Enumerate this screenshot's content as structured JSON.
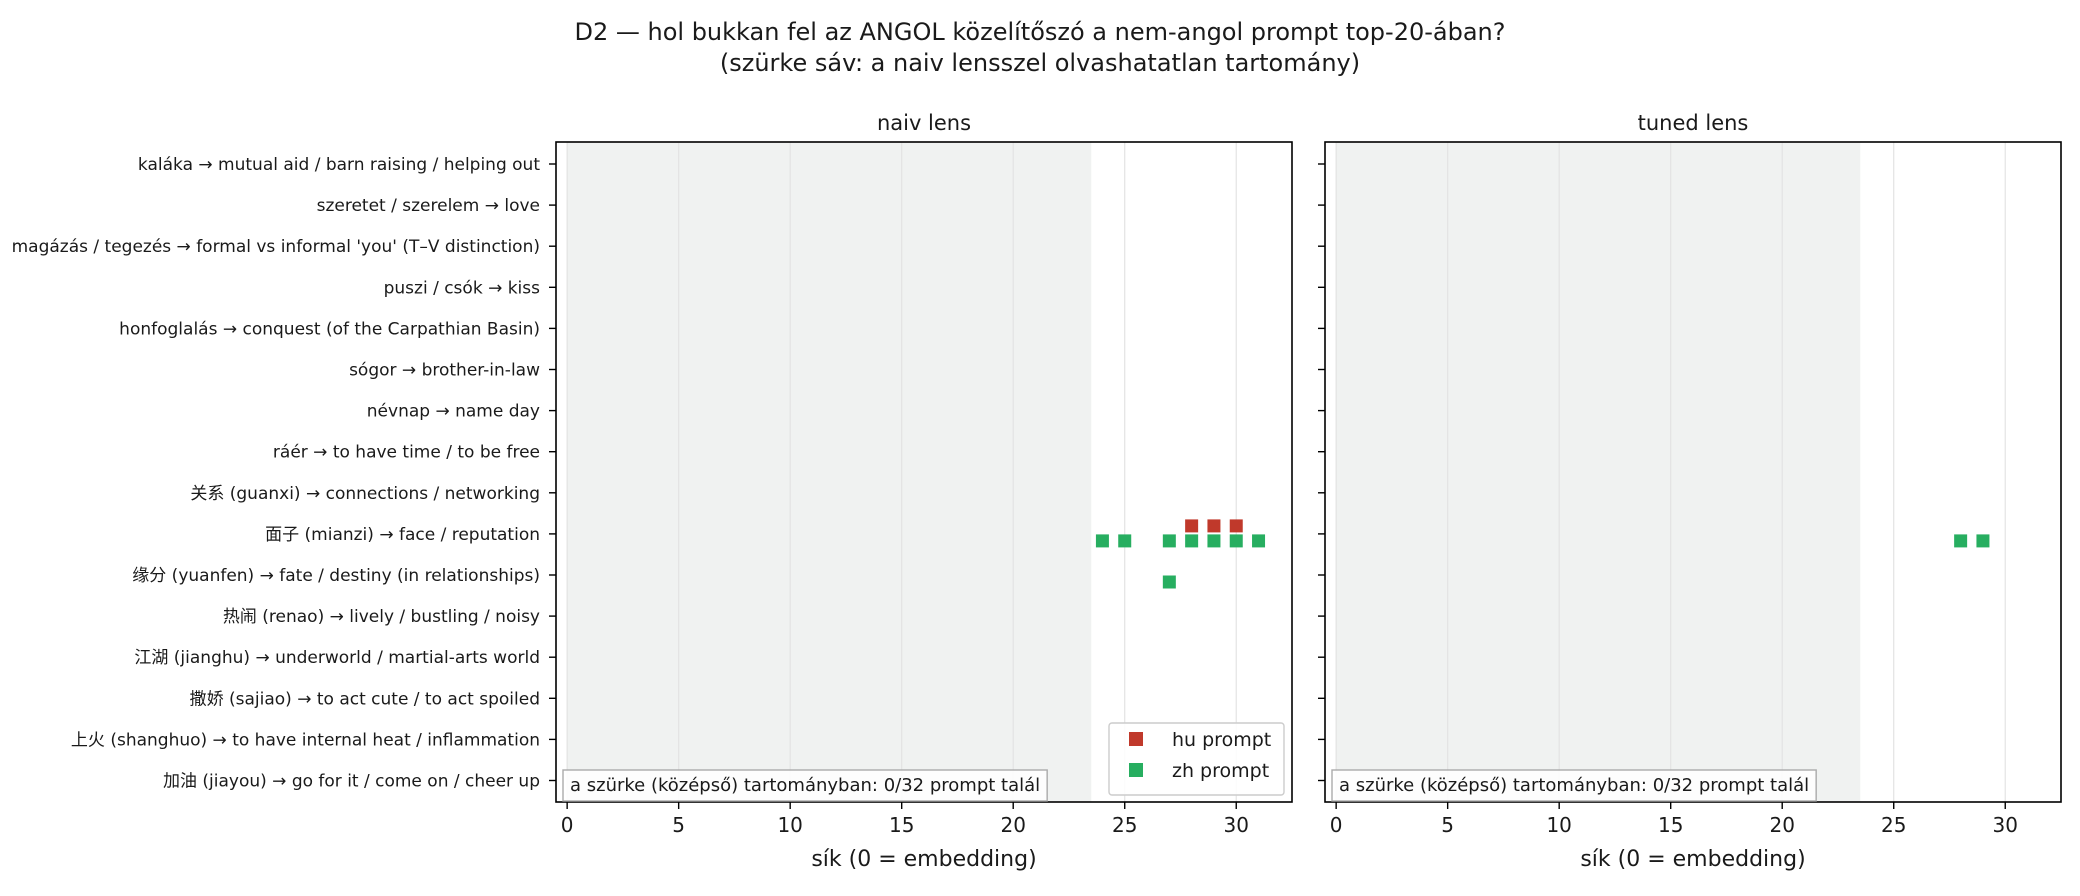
{
  "figure": {
    "title_line1": "D2 — hol bukkan fel az ANGOL közelítőszó a nem-angol prompt top-20-ában?",
    "title_line2": "(szürke sáv: a naiv lensszel olvashatatlan tartomány)"
  },
  "colors": {
    "hu": "#c0392b",
    "zh": "#27ae60",
    "shade": "#f0f2f1",
    "grid": "#e3e3e3",
    "axis": "#000000"
  },
  "chart_data": [
    {
      "type": "scatter",
      "title": "naiv lens",
      "xlabel": "sík (0 = embedding)",
      "ylabel": "",
      "xlim": [
        -0.5,
        32.5
      ],
      "xticks": [
        0,
        5,
        10,
        15,
        20,
        25,
        30
      ],
      "grid": "vertical",
      "legend_placement": "lower-right",
      "shaded_range": [
        0,
        23.5
      ],
      "annotation": "a szürke (középső) tartományban: 0/32 prompt talál",
      "categories": [
        "kaláka → mutual aid / barn raising / helping out",
        "szeretet / szerelem → love",
        "magázás / tegezés → formal vs informal 'you' (T–V distinction)",
        "puszi / csók → kiss",
        "honfoglalás → conquest (of the Carpathian Basin)",
        "sógor → brother-in-law",
        "névnap → name day",
        "ráér → to have time / to be free",
        "关系 (guanxi) → connections / networking",
        "面子 (mianzi) → face / reputation",
        "缘分 (yuanfen) → fate / destiny (in relationships)",
        "热闹 (renao) → lively / bustling / noisy",
        "江湖 (jianghu) → underworld / martial-arts world",
        "撒娇 (sajiao) → to act cute / to act spoiled",
        "上火 (shanghuo) → to have internal heat / inflammation",
        "加油 (jiayou) → go for it / come on / cheer up"
      ],
      "series": [
        {
          "name": "hu prompt",
          "points": [
            {
              "x": 28,
              "row": 9
            },
            {
              "x": 29,
              "row": 9
            },
            {
              "x": 30,
              "row": 9
            }
          ]
        },
        {
          "name": "zh prompt",
          "points": [
            {
              "x": 24,
              "row": 9
            },
            {
              "x": 25,
              "row": 9
            },
            {
              "x": 27,
              "row": 9
            },
            {
              "x": 28,
              "row": 9
            },
            {
              "x": 29,
              "row": 9
            },
            {
              "x": 30,
              "row": 9
            },
            {
              "x": 31,
              "row": 9
            },
            {
              "x": 27,
              "row": 10
            }
          ]
        }
      ]
    },
    {
      "type": "scatter",
      "title": "tuned lens",
      "xlabel": "sík (0 = embedding)",
      "ylabel": "",
      "xlim": [
        -0.5,
        32.5
      ],
      "xticks": [
        0,
        5,
        10,
        15,
        20,
        25,
        30
      ],
      "grid": "vertical",
      "shaded_range": [
        0,
        23.5
      ],
      "annotation": "a szürke (középső) tartományban: 0/32 prompt talál",
      "series": [
        {
          "name": "hu prompt",
          "points": []
        },
        {
          "name": "zh prompt",
          "points": [
            {
              "x": 28,
              "row": 9
            },
            {
              "x": 29,
              "row": 9
            }
          ]
        }
      ]
    }
  ]
}
